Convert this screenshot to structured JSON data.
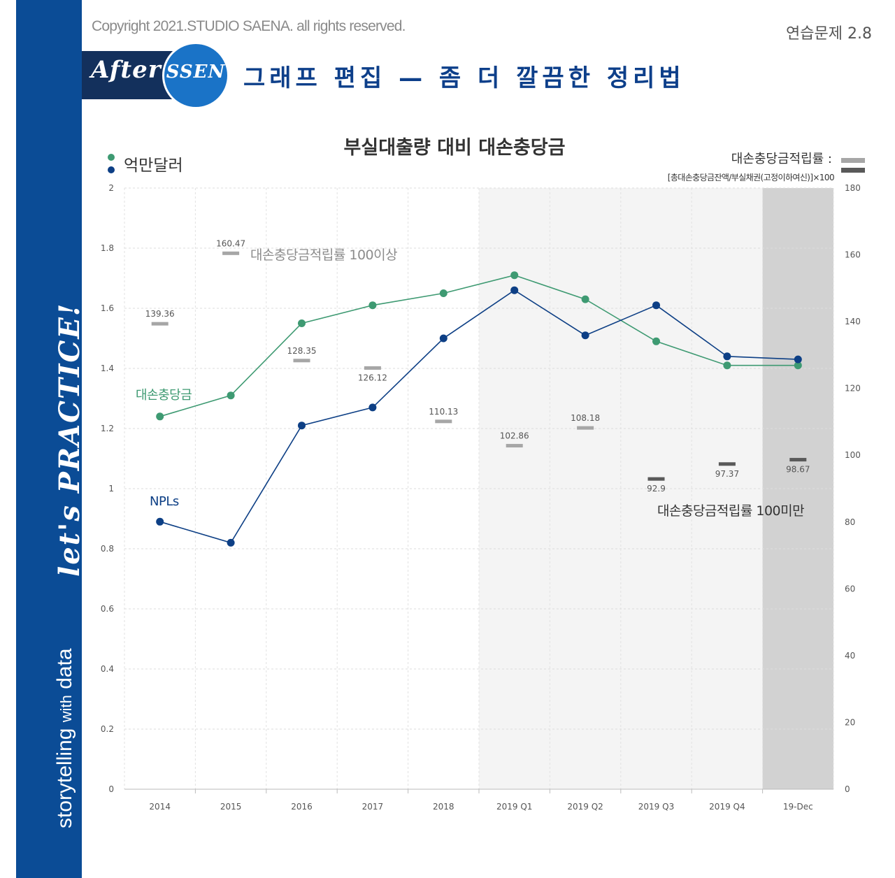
{
  "header": {
    "copyright": "Copyright 2021.STUDIO SAENA. all rights reserved.",
    "exercise_label": "연습문제 2.8",
    "badge_after": "After",
    "badge_ssen": "SSEN",
    "subtitle": "그래프 편집 — 좀 더 깔끔한 정리법"
  },
  "sidebar": {
    "main_text_1": "storytelling",
    "main_text_small": "with",
    "main_text_2": "data",
    "script_text": "let's PRACTICE!"
  },
  "colors": {
    "sidebar_bg": "#0b4c96",
    "green": "#3e9a72",
    "navy": "#0d3f85",
    "light_bar": "#a6a6a6",
    "dark_bar": "#595959",
    "shade_light": "#f4f4f4",
    "shade_dark": "#d2d2d2"
  },
  "chart_data": {
    "type": "line",
    "title": "부실대출량 대비 대손충당금",
    "unit_legend": "억만달러",
    "categories": [
      "2014",
      "2015",
      "2016",
      "2017",
      "2018",
      "2019 Q1",
      "2019 Q2",
      "2019 Q3",
      "2019 Q4",
      "19-Dec"
    ],
    "left_axis": {
      "range": [
        0,
        2
      ],
      "ticks": [
        "0",
        "0.2",
        "0.4",
        "0.6",
        "0.8",
        "1",
        "1.2",
        "1.4",
        "1.6",
        "1.8",
        "2"
      ]
    },
    "right_axis": {
      "range": [
        0,
        180
      ],
      "ticks": [
        "0",
        "20",
        "40",
        "60",
        "80",
        "100",
        "120",
        "140",
        "160",
        "180"
      ]
    },
    "series": [
      {
        "name": "대손충당금",
        "label": "대손충당금",
        "color": "#3e9a72",
        "axis": "left",
        "values": [
          1.24,
          1.31,
          1.55,
          1.61,
          1.65,
          1.71,
          1.63,
          1.49,
          1.41,
          1.41
        ]
      },
      {
        "name": "NPLs",
        "label": "NPLs",
        "color": "#0d3f85",
        "axis": "left",
        "values": [
          0.89,
          0.82,
          1.21,
          1.27,
          1.5,
          1.66,
          1.51,
          1.61,
          1.44,
          1.43
        ]
      }
    ],
    "ratio": {
      "name": "대손충당금적립률",
      "axis": "right",
      "values": [
        139.36,
        160.47,
        128.35,
        126.12,
        110.13,
        102.86,
        108.18,
        92.9,
        97.37,
        98.67
      ],
      "labels": [
        "139.36",
        "160.47",
        "128.35",
        "126.12",
        "110.13",
        "102.86",
        "108.18",
        "92.9",
        "97.37",
        "98.67"
      ]
    },
    "ratio_legend_title": "대손충당금적립률 :",
    "ratio_legend_formula": "[총대손충당금잔액/부실채권(고정이하여신)]×100",
    "annotation_above": "대손충당금적립률 100이상",
    "annotation_below": "대손충당금적립률 100미만",
    "shaded_regions": [
      "2019 Q1–2019 Q4",
      "19-Dec"
    ]
  }
}
